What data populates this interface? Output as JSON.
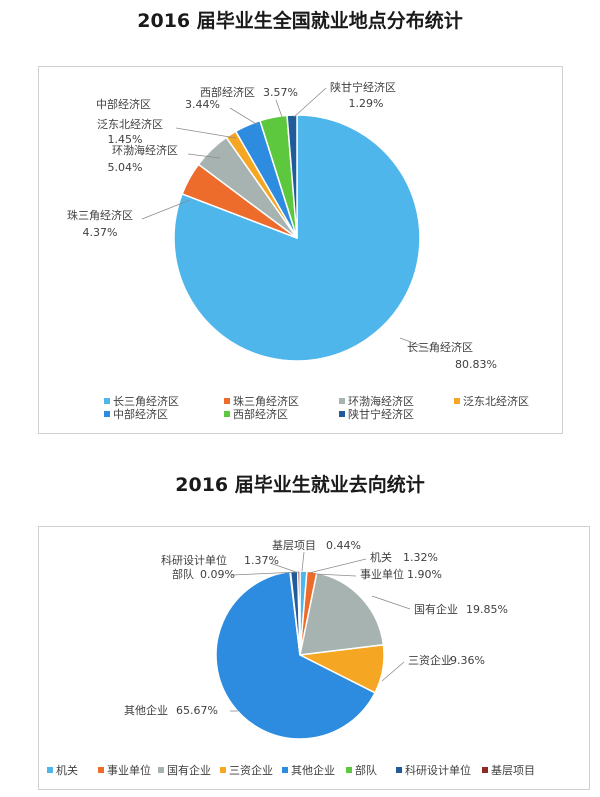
{
  "colors": {
    "sky": "#4FB6EC",
    "orange": "#ED6B2B",
    "gray": "#A7B3B1",
    "gold": "#F5A623",
    "blue": "#2E8CE0",
    "green": "#5DC83E",
    "navy": "#1F5C99",
    "darkred": "#8E2B22"
  },
  "chart_data": [
    {
      "type": "pie",
      "title": "2016 届毕业生全国就业地点分布统计",
      "legend_position": "bottom",
      "slices": [
        {
          "name": "长三角经济区",
          "value": 80.83,
          "label": "80.83%",
          "color": "#4FB6EC"
        },
        {
          "name": "珠三角经济区",
          "value": 4.37,
          "label": "4.37%",
          "color": "#ED6B2B"
        },
        {
          "name": "环渤海经济区",
          "value": 5.04,
          "label": "5.04%",
          "color": "#A7B3B1"
        },
        {
          "name": "泛东北经济区",
          "value": 1.45,
          "label": "1.45%",
          "color": "#F5A623"
        },
        {
          "name": "中部经济区",
          "value": 3.44,
          "label": "3.44%",
          "color": "#2E8CE0"
        },
        {
          "name": "西部经济区",
          "value": 3.57,
          "label": "3.57%",
          "color": "#5DC83E"
        },
        {
          "name": "陕甘宁经济区",
          "value": 1.29,
          "label": "1.29%",
          "color": "#1F5C99"
        }
      ]
    },
    {
      "type": "pie",
      "title": "2016 届毕业生就业去向统计",
      "legend_position": "bottom",
      "slices": [
        {
          "name": "机关",
          "value": 1.32,
          "label": "1.32%",
          "color": "#4FB6EC"
        },
        {
          "name": "事业单位",
          "value": 1.9,
          "label": "1.90%",
          "color": "#ED6B2B"
        },
        {
          "name": "国有企业",
          "value": 19.85,
          "label": "19.85%",
          "color": "#A7B3B1"
        },
        {
          "name": "三资企业",
          "value": 9.36,
          "label": "9.36%",
          "color": "#F5A623"
        },
        {
          "name": "其他企业",
          "value": 65.67,
          "label": "65.67%",
          "color": "#2E8CE0"
        },
        {
          "name": "部队",
          "value": 0.09,
          "label": "0.09%",
          "color": "#5DC83E"
        },
        {
          "name": "科研设计单位",
          "value": 1.37,
          "label": "1.37%",
          "color": "#1F5C99"
        },
        {
          "name": "基层项目",
          "value": 0.44,
          "label": "0.44%",
          "color": "#8E2B22"
        }
      ]
    }
  ]
}
